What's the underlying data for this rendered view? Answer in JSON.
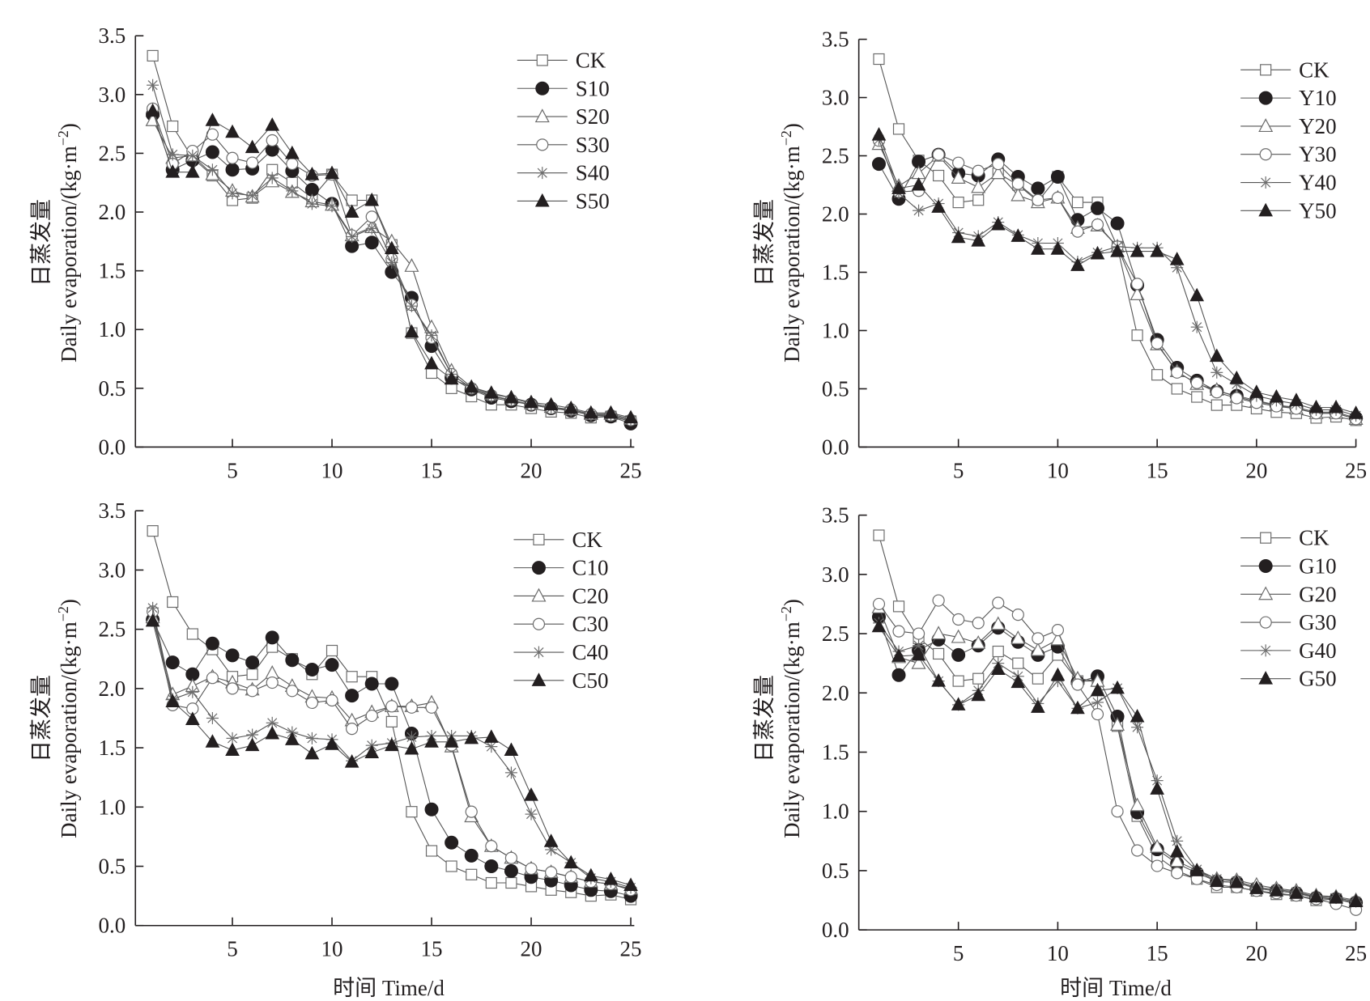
{
  "figure": {
    "y_axis_label_cn": "日蒸发量",
    "y_axis_label_en": "Daily evaporation/(kg·m",
    "y_axis_label_sup": "−2",
    "y_axis_label_close": ")",
    "x_axis_label": "时间 Time/d"
  },
  "chart_data": [
    {
      "type": "line",
      "panel": "top-left",
      "title": "",
      "xlabel": "",
      "ylabel": "日蒸发量 Daily evaporation/(kg·m−2)",
      "xlim": [
        0,
        25
      ],
      "ylim": [
        0,
        3.5
      ],
      "xticks": [
        5,
        10,
        15,
        20,
        25
      ],
      "yticks": [
        0.0,
        0.5,
        1.0,
        1.5,
        2.0,
        2.5,
        3.0,
        3.5
      ],
      "ytick_labels": [
        "0.0",
        "0.5",
        "1.0",
        "1.5",
        "2.0",
        "2.5",
        "3.0",
        "3.5"
      ],
      "grid": false,
      "legend_position": "top-right",
      "x": [
        1,
        2,
        3,
        4,
        5,
        6,
        7,
        8,
        9,
        10,
        11,
        12,
        13,
        14,
        15,
        16,
        17,
        18,
        19,
        20,
        21,
        22,
        23,
        24,
        25
      ],
      "series": [
        {
          "name": "CK",
          "marker": "square-open",
          "values": [
            3.33,
            2.73,
            2.46,
            2.31,
            2.1,
            2.12,
            2.36,
            2.25,
            2.12,
            2.32,
            2.1,
            2.1,
            1.72,
            0.97,
            0.63,
            0.5,
            0.43,
            0.36,
            0.36,
            0.33,
            0.3,
            0.29,
            0.25,
            0.26,
            0.22
          ]
        },
        {
          "name": "S10",
          "marker": "circle-filled",
          "values": [
            2.83,
            2.36,
            2.44,
            2.51,
            2.36,
            2.37,
            2.53,
            2.35,
            2.19,
            2.07,
            1.71,
            1.74,
            1.49,
            1.27,
            0.86,
            0.59,
            0.49,
            0.42,
            0.39,
            0.36,
            0.33,
            0.31,
            0.27,
            0.26,
            0.2
          ]
        },
        {
          "name": "S20",
          "marker": "triangle-open",
          "values": [
            2.78,
            2.46,
            2.48,
            2.32,
            2.18,
            2.13,
            2.26,
            2.17,
            2.09,
            2.06,
            1.8,
            1.87,
            1.75,
            1.54,
            1.02,
            0.65,
            0.51,
            0.45,
            0.42,
            0.37,
            0.34,
            0.32,
            0.28,
            0.28,
            0.24
          ]
        },
        {
          "name": "S30",
          "marker": "circle-open",
          "values": [
            2.88,
            2.41,
            2.52,
            2.66,
            2.46,
            2.42,
            2.61,
            2.41,
            2.31,
            2.32,
            1.8,
            1.96,
            1.6,
            1.21,
            0.93,
            0.62,
            0.5,
            0.44,
            0.4,
            0.36,
            0.33,
            0.32,
            0.28,
            0.27,
            0.23
          ]
        },
        {
          "name": "S40",
          "marker": "star",
          "values": [
            3.08,
            2.49,
            2.48,
            2.36,
            2.16,
            2.14,
            2.29,
            2.18,
            2.07,
            2.05,
            1.79,
            1.86,
            1.57,
            1.2,
            0.95,
            0.62,
            0.5,
            0.43,
            0.4,
            0.36,
            0.33,
            0.31,
            0.27,
            0.27,
            0.23
          ]
        },
        {
          "name": "S50",
          "marker": "triangle-filled",
          "values": [
            2.86,
            2.34,
            2.34,
            2.78,
            2.68,
            2.55,
            2.74,
            2.5,
            2.32,
            2.33,
            2.0,
            2.1,
            1.69,
            0.98,
            0.71,
            0.58,
            0.51,
            0.46,
            0.42,
            0.38,
            0.36,
            0.33,
            0.29,
            0.29,
            0.25
          ]
        }
      ]
    },
    {
      "type": "line",
      "panel": "top-right",
      "title": "",
      "xlabel": "",
      "ylabel": "日蒸发量 Daily evaporation/(kg·m−2)",
      "xlim": [
        0,
        25
      ],
      "ylim": [
        0,
        3.5
      ],
      "xticks": [
        5,
        10,
        15,
        20,
        25
      ],
      "yticks": [
        0.0,
        0.5,
        1.0,
        1.5,
        2.0,
        2.5,
        3.0,
        3.5
      ],
      "ytick_labels": [
        "0.0",
        "0.5",
        "1.0",
        "1.5",
        "2.0",
        "2.5",
        "3.0",
        "3.5"
      ],
      "grid": false,
      "legend_position": "top-right",
      "x": [
        1,
        2,
        3,
        4,
        5,
        6,
        7,
        8,
        9,
        10,
        11,
        12,
        13,
        14,
        15,
        16,
        17,
        18,
        19,
        20,
        21,
        22,
        23,
        24,
        25
      ],
      "series": [
        {
          "name": "CK",
          "marker": "square-open",
          "values": [
            3.33,
            2.73,
            2.46,
            2.33,
            2.1,
            2.12,
            2.35,
            2.25,
            2.11,
            2.32,
            2.1,
            2.1,
            1.72,
            0.96,
            0.62,
            0.5,
            0.43,
            0.36,
            0.36,
            0.33,
            0.3,
            0.29,
            0.25,
            0.26,
            0.23
          ]
        },
        {
          "name": "Y10",
          "marker": "circle-filled",
          "values": [
            2.43,
            2.13,
            2.45,
            2.51,
            2.35,
            2.33,
            2.47,
            2.32,
            2.22,
            2.32,
            1.95,
            2.05,
            1.92,
            1.39,
            0.92,
            0.68,
            0.57,
            0.48,
            0.44,
            0.4,
            0.36,
            0.34,
            0.3,
            0.3,
            0.25
          ]
        },
        {
          "name": "Y20",
          "marker": "triangle-open",
          "values": [
            2.6,
            2.24,
            2.35,
            2.5,
            2.31,
            2.23,
            2.35,
            2.16,
            2.1,
            2.14,
            1.88,
            1.9,
            1.72,
            1.31,
            0.88,
            0.65,
            0.54,
            0.49,
            0.43,
            0.39,
            0.36,
            0.33,
            0.29,
            0.29,
            0.24
          ]
        },
        {
          "name": "Y30",
          "marker": "circle-open",
          "values": [
            2.63,
            2.19,
            2.2,
            2.51,
            2.44,
            2.37,
            2.43,
            2.26,
            2.12,
            2.14,
            1.85,
            1.91,
            1.72,
            1.4,
            0.89,
            0.64,
            0.55,
            0.47,
            0.42,
            0.38,
            0.35,
            0.33,
            0.29,
            0.29,
            0.24
          ]
        },
        {
          "name": "Y40",
          "marker": "star",
          "values": [
            2.64,
            2.18,
            2.03,
            2.09,
            1.84,
            1.81,
            1.93,
            1.82,
            1.75,
            1.75,
            1.59,
            1.67,
            1.72,
            1.71,
            1.71,
            1.54,
            1.03,
            0.64,
            0.54,
            0.44,
            0.4,
            0.37,
            0.32,
            0.32,
            0.27
          ]
        },
        {
          "name": "Y50",
          "marker": "triangle-filled",
          "values": [
            2.68,
            2.22,
            2.25,
            2.06,
            1.8,
            1.77,
            1.91,
            1.81,
            1.7,
            1.7,
            1.56,
            1.66,
            1.68,
            1.68,
            1.68,
            1.61,
            1.3,
            0.78,
            0.59,
            0.47,
            0.43,
            0.4,
            0.34,
            0.34,
            0.29
          ]
        }
      ]
    },
    {
      "type": "line",
      "panel": "bottom-left",
      "title": "",
      "xlabel": "时间 Time/d",
      "ylabel": "日蒸发量 Daily evaporation/(kg·m−2)",
      "xlim": [
        0,
        25
      ],
      "ylim": [
        0,
        3.5
      ],
      "xticks": [
        5,
        10,
        15,
        20,
        25
      ],
      "yticks": [
        0.0,
        0.5,
        1.0,
        1.5,
        2.0,
        2.5,
        3.0,
        3.5
      ],
      "ytick_labels": [
        "0.0",
        "0.5",
        "1.0",
        "1.5",
        "2.0",
        "2.5",
        "3.0",
        "3.5"
      ],
      "grid": false,
      "legend_position": "top-right",
      "x": [
        1,
        2,
        3,
        4,
        5,
        6,
        7,
        8,
        9,
        10,
        11,
        12,
        13,
        14,
        15,
        16,
        17,
        18,
        19,
        20,
        21,
        22,
        23,
        24,
        25
      ],
      "series": [
        {
          "name": "CK",
          "marker": "square-open",
          "values": [
            3.33,
            2.73,
            2.46,
            2.33,
            2.1,
            2.12,
            2.35,
            2.25,
            2.12,
            2.32,
            2.1,
            2.1,
            1.72,
            0.96,
            0.63,
            0.5,
            0.43,
            0.36,
            0.36,
            0.33,
            0.3,
            0.28,
            0.25,
            0.26,
            0.22
          ]
        },
        {
          "name": "C10",
          "marker": "circle-filled",
          "values": [
            2.58,
            2.22,
            2.12,
            2.38,
            2.28,
            2.22,
            2.43,
            2.24,
            2.16,
            2.2,
            1.94,
            2.04,
            2.04,
            1.62,
            0.98,
            0.7,
            0.59,
            0.5,
            0.46,
            0.41,
            0.38,
            0.34,
            0.3,
            0.29,
            0.25
          ]
        },
        {
          "name": "C20",
          "marker": "triangle-open",
          "values": [
            2.6,
            1.95,
            2.02,
            2.1,
            2.05,
            1.99,
            2.13,
            2.02,
            1.93,
            1.92,
            1.73,
            1.8,
            1.85,
            1.85,
            1.88,
            1.51,
            0.92,
            0.67,
            0.57,
            0.48,
            0.45,
            0.41,
            0.37,
            0.35,
            0.31
          ]
        },
        {
          "name": "C30",
          "marker": "circle-open",
          "values": [
            2.65,
            1.86,
            1.83,
            2.09,
            2.0,
            1.98,
            2.05,
            1.98,
            1.88,
            1.9,
            1.66,
            1.77,
            1.85,
            1.84,
            1.84,
            1.52,
            0.96,
            0.67,
            0.57,
            0.48,
            0.45,
            0.41,
            0.37,
            0.35,
            0.3
          ]
        },
        {
          "name": "C40",
          "marker": "star",
          "values": [
            2.68,
            1.91,
            1.97,
            1.75,
            1.58,
            1.61,
            1.71,
            1.63,
            1.58,
            1.57,
            1.39,
            1.52,
            1.54,
            1.59,
            1.6,
            1.6,
            1.6,
            1.51,
            1.29,
            0.94,
            0.64,
            0.53,
            0.4,
            0.37,
            0.32
          ]
        },
        {
          "name": "C50",
          "marker": "triangle-filled",
          "values": [
            2.57,
            1.89,
            1.74,
            1.55,
            1.48,
            1.52,
            1.62,
            1.57,
            1.45,
            1.53,
            1.38,
            1.46,
            1.52,
            1.49,
            1.55,
            1.55,
            1.58,
            1.59,
            1.48,
            1.1,
            0.71,
            0.53,
            0.42,
            0.39,
            0.34
          ]
        }
      ]
    },
    {
      "type": "line",
      "panel": "bottom-right",
      "title": "",
      "xlabel": "时间 Time/d",
      "ylabel": "日蒸发量 Daily evaporation/(kg·m−2)",
      "xlim": [
        0,
        25
      ],
      "ylim": [
        0,
        3.5
      ],
      "xticks": [
        5,
        10,
        15,
        20,
        25
      ],
      "yticks": [
        0.0,
        0.5,
        1.0,
        1.5,
        2.0,
        2.5,
        3.0,
        3.5
      ],
      "ytick_labels": [
        "0.0",
        "0.5",
        "1.0",
        "1.5",
        "2.0",
        "2.5",
        "3.0",
        "3.5"
      ],
      "grid": false,
      "legend_position": "top-right",
      "x": [
        1,
        2,
        3,
        4,
        5,
        6,
        7,
        8,
        9,
        10,
        11,
        12,
        13,
        14,
        15,
        16,
        17,
        18,
        19,
        20,
        21,
        22,
        23,
        24,
        25
      ],
      "series": [
        {
          "name": "CK",
          "marker": "square-open",
          "values": [
            3.33,
            2.73,
            2.46,
            2.33,
            2.1,
            2.12,
            2.35,
            2.25,
            2.12,
            2.32,
            2.1,
            2.1,
            1.72,
            0.96,
            0.62,
            0.5,
            0.43,
            0.36,
            0.36,
            0.33,
            0.3,
            0.29,
            0.25,
            0.26,
            0.22
          ]
        },
        {
          "name": "G10",
          "marker": "circle-filled",
          "values": [
            2.64,
            2.15,
            2.36,
            2.45,
            2.32,
            2.4,
            2.55,
            2.43,
            2.32,
            2.39,
            2.09,
            2.14,
            1.8,
            0.99,
            0.68,
            0.56,
            0.48,
            0.41,
            0.4,
            0.35,
            0.33,
            0.31,
            0.27,
            0.26,
            0.23
          ]
        },
        {
          "name": "G20",
          "marker": "triangle-open",
          "values": [
            2.72,
            2.3,
            2.25,
            2.5,
            2.47,
            2.42,
            2.58,
            2.46,
            2.36,
            2.45,
            2.12,
            2.1,
            1.73,
            1.05,
            0.7,
            0.58,
            0.5,
            0.43,
            0.42,
            0.38,
            0.35,
            0.33,
            0.29,
            0.28,
            0.25
          ]
        },
        {
          "name": "G30",
          "marker": "circle-open",
          "values": [
            2.75,
            2.52,
            2.5,
            2.78,
            2.62,
            2.59,
            2.76,
            2.66,
            2.46,
            2.53,
            2.07,
            1.82,
            1.0,
            0.67,
            0.54,
            0.48,
            0.43,
            0.38,
            0.36,
            0.33,
            0.31,
            0.29,
            0.26,
            0.22,
            0.17
          ]
        },
        {
          "name": "G40",
          "marker": "star",
          "values": [
            2.59,
            2.35,
            2.4,
            2.1,
            1.9,
            2.02,
            2.25,
            2.14,
            1.91,
            2.1,
            1.87,
            1.92,
            2.04,
            1.71,
            1.26,
            0.75,
            0.51,
            0.43,
            0.41,
            0.36,
            0.34,
            0.32,
            0.28,
            0.27,
            0.24
          ]
        },
        {
          "name": "G50",
          "marker": "triangle-filled",
          "values": [
            2.56,
            2.31,
            2.32,
            2.1,
            1.9,
            1.98,
            2.2,
            2.09,
            1.88,
            2.15,
            1.87,
            2.02,
            2.04,
            1.8,
            1.19,
            0.66,
            0.5,
            0.41,
            0.4,
            0.35,
            0.33,
            0.31,
            0.28,
            0.27,
            0.24
          ]
        }
      ]
    }
  ]
}
